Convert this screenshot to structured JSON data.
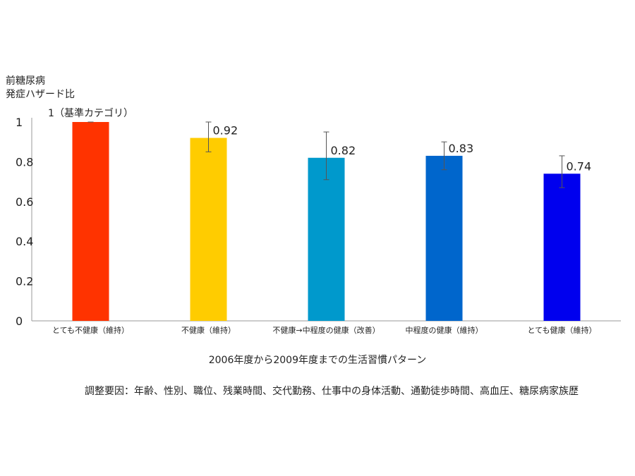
{
  "chart_data": {
    "type": "bar",
    "ylabel_lines": [
      "前糖尿病",
      "発症ハザード比"
    ],
    "xlabel": "2006年度から2009年度までの生活習慣パターン",
    "note": "調整要因：年齢、性別、職位、残業時間、交代勤務、仕事中の身体活動、通勤徒歩時間、高血圧、糖尿病家族歴",
    "ylim": [
      0,
      1
    ],
    "yticks": [
      0,
      0.2,
      0.4,
      0.6,
      0.8,
      1
    ],
    "ytick_labels": [
      "0",
      "0.2",
      "0.4",
      "0.6",
      "0.8",
      "1"
    ],
    "grid": false,
    "categories": [
      "とても不健康（維持）",
      "不健康（維持）",
      "不健康→中程度の健康（改善）",
      "中程度の健康（維持）",
      "とても健康（維持）"
    ],
    "values": [
      1,
      0.92,
      0.82,
      0.83,
      0.74
    ],
    "value_labels": [
      "1（基準カテゴリ）",
      "0.92",
      "0.82",
      "0.83",
      "0.74"
    ],
    "ci_low": [
      null,
      0.85,
      0.71,
      0.76,
      0.67
    ],
    "ci_high": [
      null,
      1.0,
      0.95,
      0.9,
      0.83
    ],
    "colors": [
      "#ff3300",
      "#ffcc00",
      "#0099cc",
      "#0066cc",
      "#0000ee"
    ]
  }
}
